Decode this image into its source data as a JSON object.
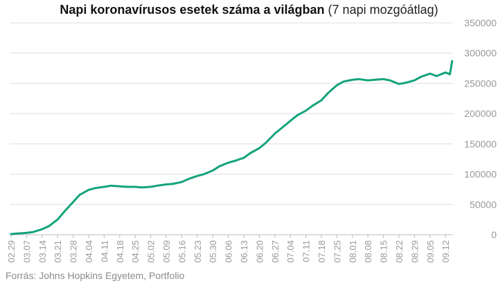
{
  "title_bold": "Napi koronavírusos esetek száma a világban",
  "title_normal": "(7 napi mozgóátlag)",
  "source": "Forrás: Johns Hopkins Egyetem, Portfolio",
  "colors": {
    "line": "#13a37c",
    "grid": "#dddddd",
    "axis": "#999999",
    "text": "#999999"
  },
  "chart_data": {
    "type": "line",
    "title": "Napi koronavírusos esetek száma a világban (7 napi mozgóátlag)",
    "xlabel": "",
    "ylabel": "",
    "ylim": [
      0,
      350000
    ],
    "y_axis_side": "right",
    "grid": "horizontal",
    "yticks": [
      0,
      50000,
      100000,
      150000,
      200000,
      250000,
      300000,
      350000
    ],
    "ytick_labels": [
      "0",
      "50000",
      "100000",
      "150000",
      "200000",
      "250000",
      "300000",
      "350000"
    ],
    "xticks": [
      "02.29",
      "03.07",
      "03.14",
      "03.21",
      "03.28",
      "04.04",
      "04.11",
      "04.18",
      "04.25",
      "05.02",
      "05.09",
      "05.16",
      "05.23",
      "05.30",
      "06.06",
      "06.13",
      "06.20",
      "06.27",
      "07.04",
      "07.11",
      "07.18",
      "07.25",
      "08.01",
      "08.08",
      "08.15",
      "08.22",
      "08.29",
      "09.05",
      "09.12"
    ],
    "series": [
      {
        "color": "#13a37c",
        "points": [
          [
            "02.29",
            1000
          ],
          [
            "03.03",
            2000
          ],
          [
            "03.07",
            3000
          ],
          [
            "03.10",
            4500
          ],
          [
            "03.14",
            9000
          ],
          [
            "03.17",
            14000
          ],
          [
            "03.21",
            25000
          ],
          [
            "03.24",
            38000
          ],
          [
            "03.28",
            54000
          ],
          [
            "03.31",
            66000
          ],
          [
            "04.04",
            74000
          ],
          [
            "04.07",
            77000
          ],
          [
            "04.11",
            79000
          ],
          [
            "04.14",
            81000
          ],
          [
            "04.18",
            80000
          ],
          [
            "04.21",
            79000
          ],
          [
            "04.25",
            79000
          ],
          [
            "04.28",
            78000
          ],
          [
            "05.02",
            79000
          ],
          [
            "05.05",
            81000
          ],
          [
            "05.09",
            83000
          ],
          [
            "05.12",
            84000
          ],
          [
            "05.16",
            87000
          ],
          [
            "05.19",
            92000
          ],
          [
            "05.23",
            97000
          ],
          [
            "05.26",
            100000
          ],
          [
            "05.30",
            106000
          ],
          [
            "06.02",
            113000
          ],
          [
            "06.06",
            119000
          ],
          [
            "06.09",
            122000
          ],
          [
            "06.13",
            127000
          ],
          [
            "06.16",
            135000
          ],
          [
            "06.20",
            143000
          ],
          [
            "06.23",
            152000
          ],
          [
            "06.27",
            167000
          ],
          [
            "06.30",
            176000
          ],
          [
            "07.04",
            188000
          ],
          [
            "07.07",
            197000
          ],
          [
            "07.11",
            205000
          ],
          [
            "07.14",
            213000
          ],
          [
            "07.18",
            222000
          ],
          [
            "07.21",
            234000
          ],
          [
            "07.25",
            247000
          ],
          [
            "07.28",
            253000
          ],
          [
            "08.01",
            256000
          ],
          [
            "08.04",
            257000
          ],
          [
            "08.08",
            255000
          ],
          [
            "08.11",
            256000
          ],
          [
            "08.15",
            257000
          ],
          [
            "08.18",
            255000
          ],
          [
            "08.22",
            249000
          ],
          [
            "08.25",
            251000
          ],
          [
            "08.29",
            255000
          ],
          [
            "09.01",
            261000
          ],
          [
            "09.05",
            266000
          ],
          [
            "09.08",
            262000
          ],
          [
            "09.12",
            268000
          ],
          [
            "09.14",
            265000
          ],
          [
            "09.15",
            287000
          ]
        ]
      }
    ]
  }
}
